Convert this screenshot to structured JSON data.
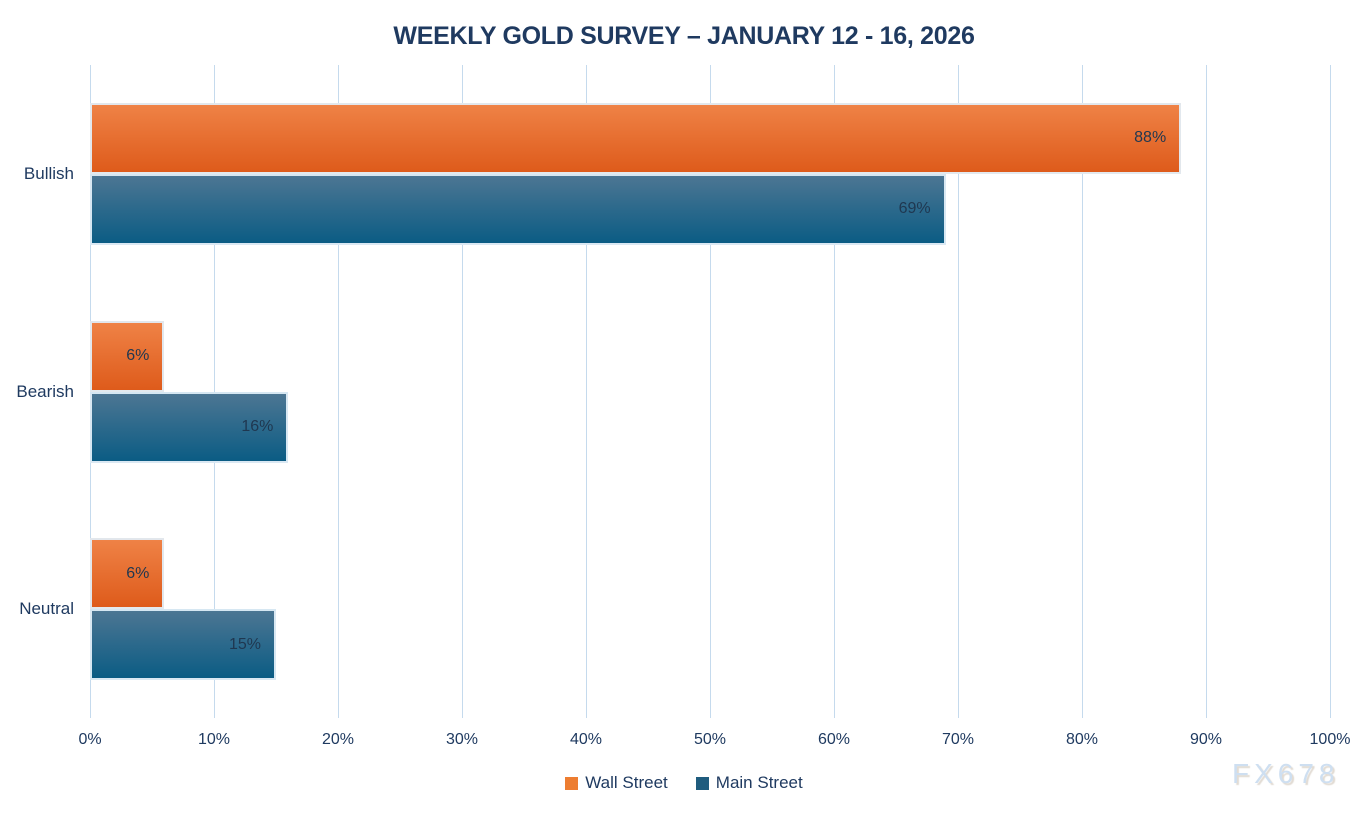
{
  "title": "WEEKLY GOLD SURVEY – JANUARY 12 - 16, 2026",
  "watermark": "FX678",
  "colors": {
    "title_text": "#1F3A60",
    "axis_text": "#1F3A60",
    "bar_label_text": "#1F3750",
    "gridline": "#C5DAED",
    "wall_street_top": "#EF8246",
    "wall_street_bottom": "#DE5B1B",
    "main_street_top": "#4C7693",
    "main_street_bottom": "#0B5C84",
    "legend_wall_street": "#ED7D31",
    "legend_main_street": "#1F5C7E",
    "watermark_text": "#CEDFF1"
  },
  "chart_data": {
    "type": "bar",
    "orientation": "horizontal",
    "title": "WEEKLY GOLD SURVEY – JANUARY 12 - 16, 2026",
    "categories": [
      "Bullish",
      "Bearish",
      "Neutral"
    ],
    "series": [
      {
        "name": "Wall Street",
        "values": [
          88,
          6,
          6
        ],
        "labels": [
          "88%",
          "6%",
          "6%"
        ]
      },
      {
        "name": "Main Street",
        "values": [
          69,
          16,
          15
        ],
        "labels": [
          "69%",
          "16%",
          "15%"
        ]
      }
    ],
    "xlabel": "",
    "ylabel": "",
    "xlim": [
      0,
      100
    ],
    "x_ticks": [
      "0%",
      "10%",
      "20%",
      "30%",
      "40%",
      "50%",
      "60%",
      "70%",
      "80%",
      "90%",
      "100%"
    ],
    "grid": true,
    "legend_position": "bottom"
  }
}
